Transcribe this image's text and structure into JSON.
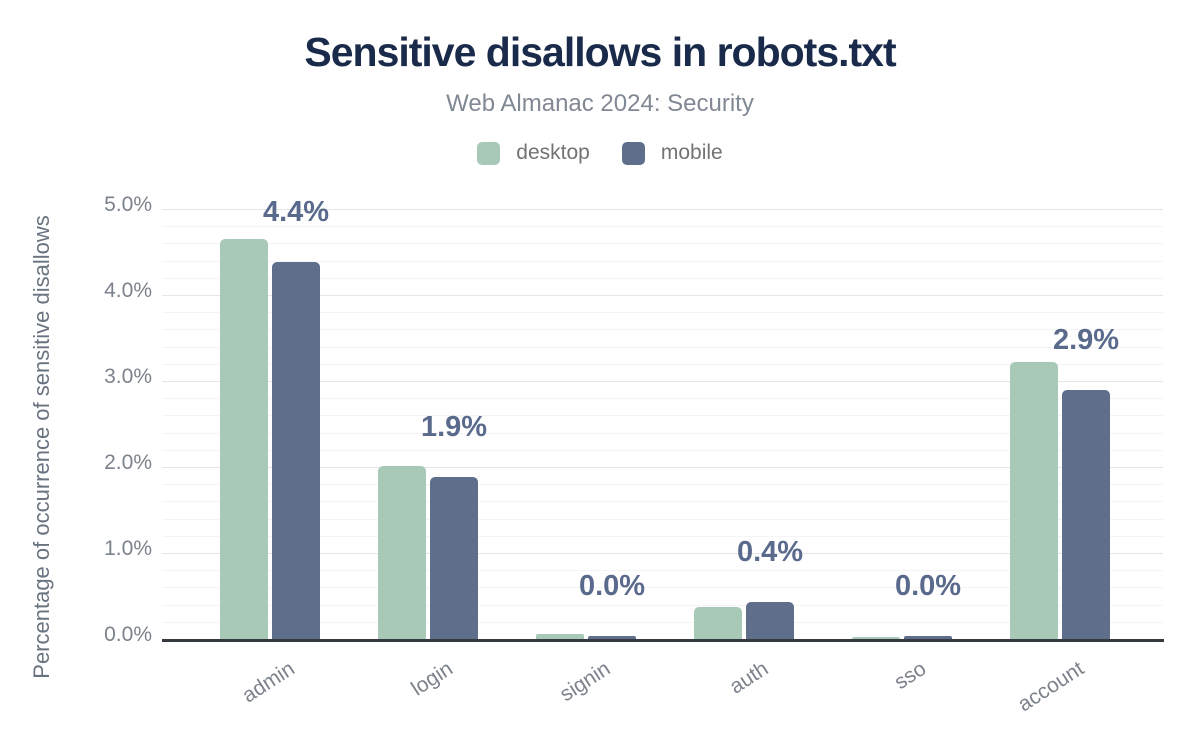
{
  "chart_data": {
    "type": "bar",
    "title": "Sensitive disallows in robots.txt",
    "subtitle": "Web Almanac 2024: Security",
    "ylabel": "Percentage of occurrence of sensitive disallows",
    "categories": [
      "admin",
      "login",
      "signin",
      "auth",
      "sso",
      "account"
    ],
    "series": [
      {
        "name": "desktop",
        "color": "#a9c9b8",
        "values": [
          4.65,
          2.01,
          0.06,
          0.37,
          0.02,
          3.22
        ]
      },
      {
        "name": "mobile",
        "color": "#5f6e8a",
        "values": [
          4.38,
          1.88,
          0.03,
          0.43,
          0.03,
          2.9
        ]
      }
    ],
    "bar_labels": [
      "4.4%",
      "1.9%",
      "0.0%",
      "0.4%",
      "0.0%",
      "2.9%"
    ],
    "bar_labels_series": "mobile",
    "yticks": [
      "0.0%",
      "1.0%",
      "2.0%",
      "3.0%",
      "4.0%",
      "5.0%"
    ],
    "ylim": [
      0,
      5
    ],
    "minor_grid_step": 0.2,
    "major_grid_step": 1.0,
    "grid": true,
    "legend_position": "top",
    "colors": {
      "title": "#1a2a4a",
      "subtitle": "#808894",
      "legend_text": "#737373",
      "tick_text": "#7c828c",
      "axis_title_text": "#6a7380",
      "bar_label": "#5a6a8c",
      "axis_line": "#343a40",
      "grid_major": "#e6e6e6",
      "grid_minor": "#f4f4f4",
      "background": "#ffffff"
    }
  }
}
